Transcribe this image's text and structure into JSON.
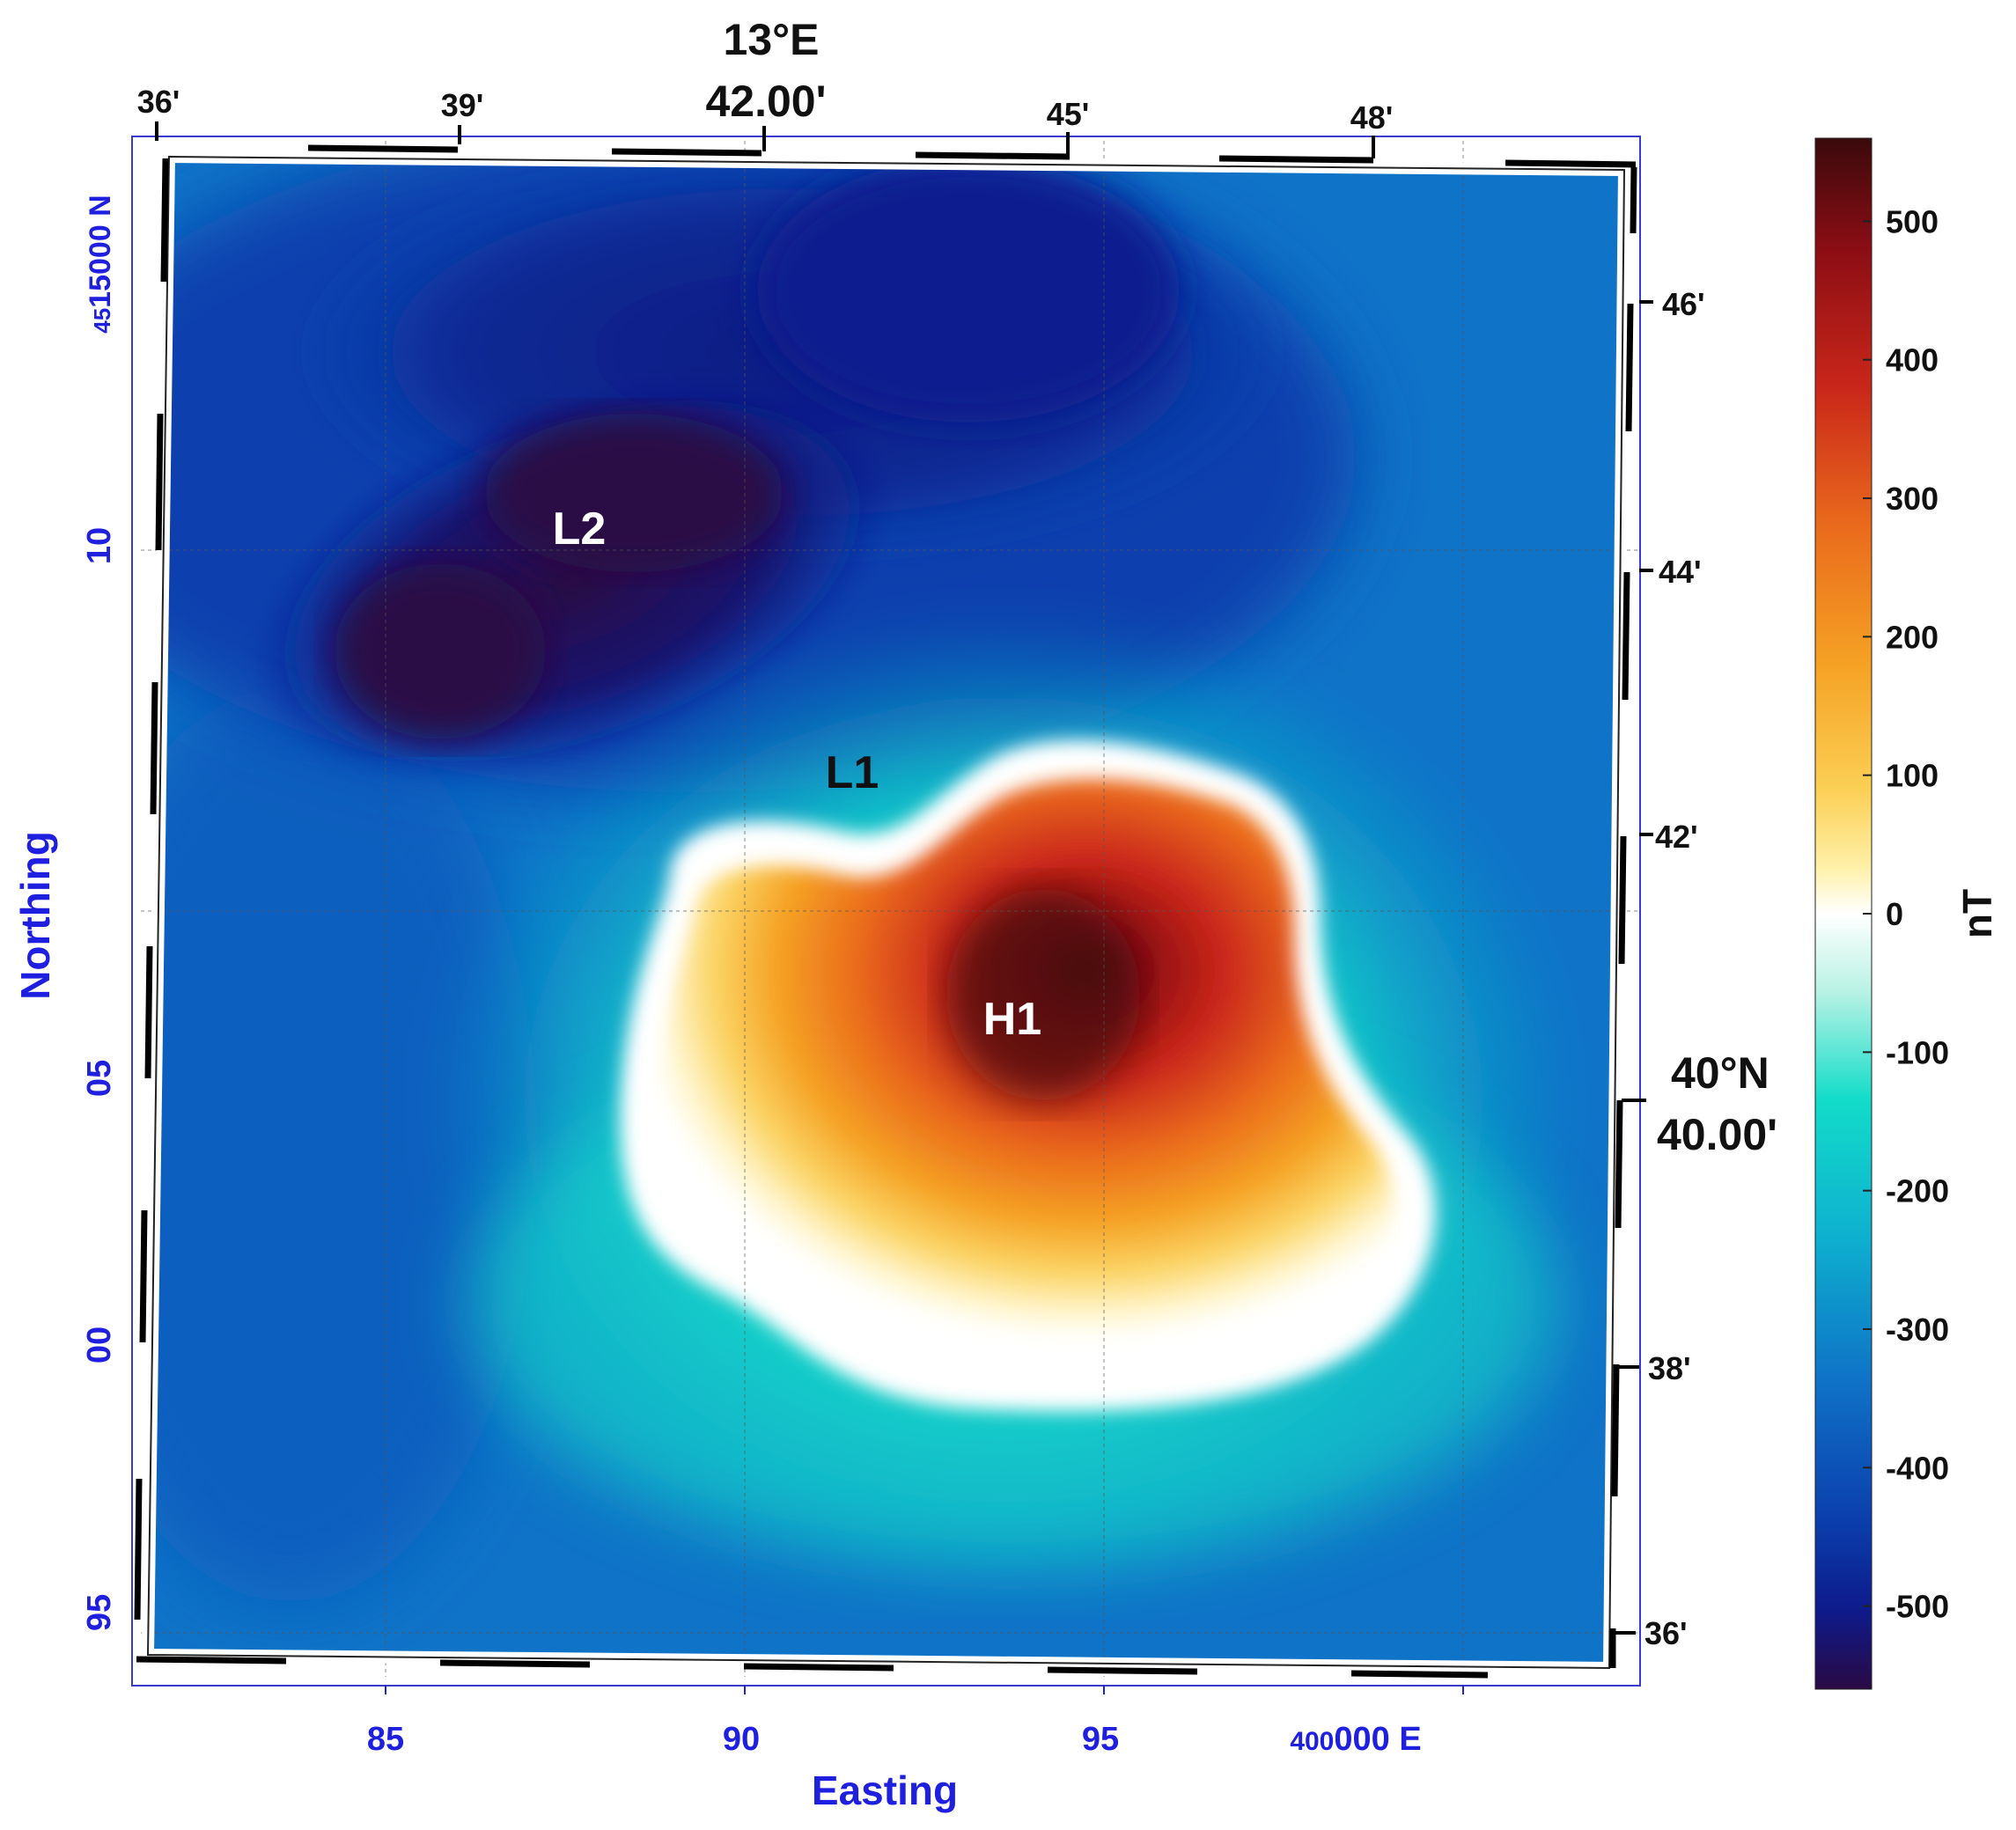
{
  "map": {
    "easting_axis": {
      "title": "Easting",
      "ticks": [
        "85",
        "90",
        "95"
      ],
      "last_tick_prefix": "400",
      "last_tick_suffix": "000 E"
    },
    "northing_axis": {
      "title": "Northing",
      "ticks": [
        "10",
        "05",
        "00",
        "95"
      ],
      "top_tick_prefix": "45",
      "top_tick_suffix": "15000 N"
    },
    "longitude_ticks": {
      "minutes": [
        "36'",
        "39'",
        "45'",
        "48'"
      ],
      "main_degree": "13°E",
      "main_minutes": "42.00'"
    },
    "latitude_ticks": {
      "minutes": [
        "46'",
        "44'",
        "42'",
        "38'",
        "36'"
      ],
      "main_degree": "40°N",
      "main_minutes": "40.00'"
    },
    "anomalies": {
      "l2": "L2",
      "l1": "L1",
      "h1": "H1"
    }
  },
  "colorbar": {
    "unit": "nT",
    "range": [
      -560,
      560
    ],
    "ticks": [
      "500",
      "400",
      "300",
      "200",
      "100",
      "0",
      "-100",
      "-200",
      "-300",
      "-400",
      "-500"
    ],
    "colors": [
      "#2a0a44",
      "#0e1a8a",
      "#0b3fae",
      "#0f73c7",
      "#0eafcf",
      "#12dcc9",
      "#c9f6ea",
      "#ffffff",
      "#fff0a8",
      "#fbcf55",
      "#f5a224",
      "#ea6a1c",
      "#c9261a",
      "#8a0d14",
      "#3a0a0c"
    ]
  }
}
